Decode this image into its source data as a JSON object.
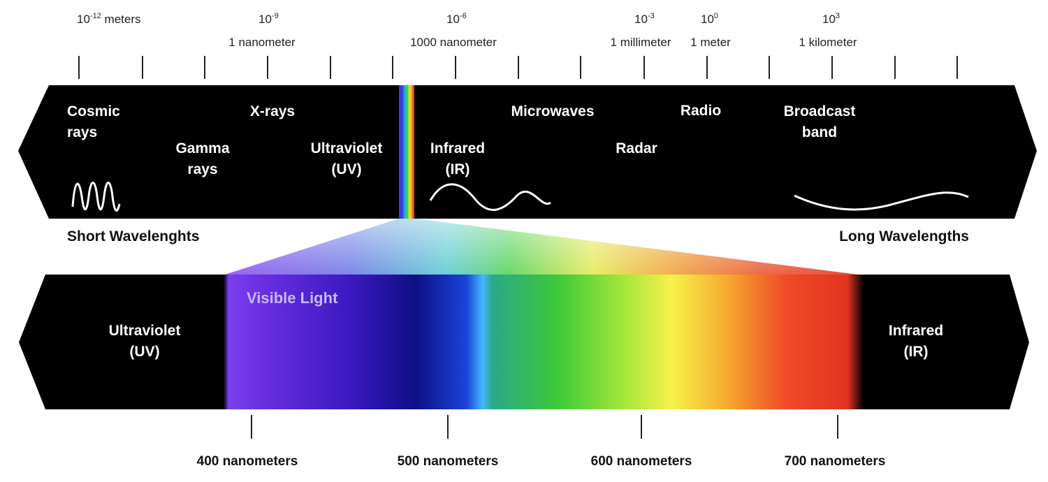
{
  "scale": {
    "exponents": {
      "m12": {
        "base": "10",
        "exp": "-12",
        "unit": " meters"
      },
      "m9": {
        "base": "10",
        "exp": "-9"
      },
      "m6": {
        "base": "10",
        "exp": "-6"
      },
      "m3": {
        "base": "10",
        "exp": "-3"
      },
      "p0": {
        "base": "10",
        "exp": "0"
      },
      "p3": {
        "base": "10",
        "exp": "3"
      }
    },
    "units": {
      "nanometer": "1 nanometer",
      "thousand_nm": "1000 nanometer",
      "millimeter": "1 millimeter",
      "meter": "1 meter",
      "kilometer": "1 kilometer"
    }
  },
  "spectrum_bands": {
    "cosmic": [
      "Cosmic",
      "rays"
    ],
    "gamma": [
      "Gamma",
      "rays"
    ],
    "xrays": "X-rays",
    "uv": [
      "Ultraviolet",
      "(UV)"
    ],
    "ir": [
      "Infrared",
      "(IR)"
    ],
    "microwaves": "Microwaves",
    "radar": "Radar",
    "radio": "Radio",
    "broadcast": [
      "Broadcast",
      "band"
    ]
  },
  "wavelength_labels": {
    "short": "Short Wavelenghts",
    "long": "Long Wavelengths"
  },
  "visible": {
    "title": "Visible Light",
    "left": [
      "Ultraviolet",
      "(UV)"
    ],
    "right": [
      "Infrared",
      "(IR)"
    ],
    "nm_ticks": [
      "400 nanometers",
      "500 nanometers",
      "600 nanometers",
      "700 nanometers"
    ]
  }
}
